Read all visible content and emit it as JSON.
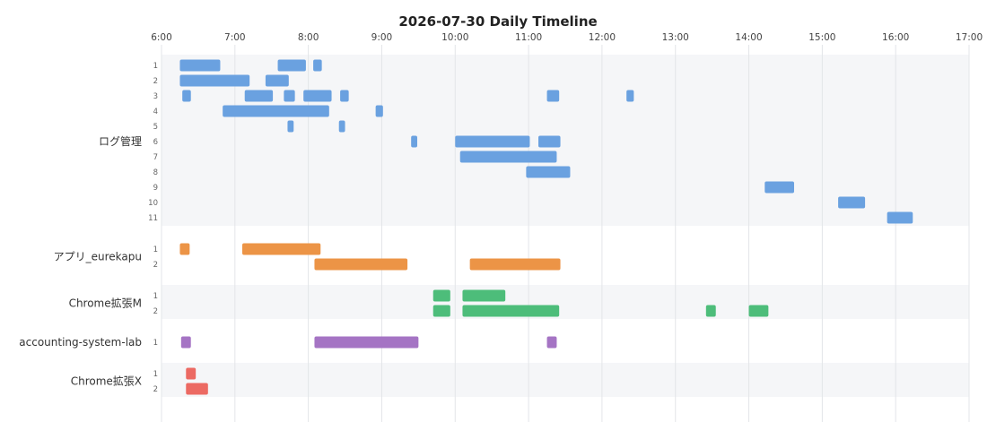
{
  "chart_data": {
    "type": "timeline",
    "title": "2026-07-30 Daily Timeline",
    "x_ticks": [
      "6:00",
      "7:00",
      "8:00",
      "9:00",
      "10:00",
      "11:00",
      "12:00",
      "13:00",
      "14:00",
      "15:00",
      "16:00",
      "17:00"
    ],
    "xlim": [
      "6:00",
      "17:00"
    ],
    "grid": true,
    "groups": [
      {
        "name": "ログ管理",
        "color": "#6aa1e0",
        "lanes": [
          {
            "label": "1",
            "bars": [
              [
                "6:15",
                "6:48"
              ],
              [
                "7:35",
                "7:58"
              ],
              [
                "8:04",
                "8:11"
              ]
            ]
          },
          {
            "label": "2",
            "bars": [
              [
                "6:15",
                "7:12"
              ],
              [
                "7:25",
                "7:44"
              ]
            ]
          },
          {
            "label": "3",
            "bars": [
              [
                "6:17",
                "6:24"
              ],
              [
                "7:08",
                "7:31"
              ],
              [
                "7:40",
                "7:49"
              ],
              [
                "7:56",
                "8:19"
              ],
              [
                "8:26",
                "8:33"
              ],
              [
                "11:15",
                "11:25"
              ],
              [
                "12:20",
                "12:26"
              ]
            ]
          },
          {
            "label": "4",
            "bars": [
              [
                "6:50",
                "8:17"
              ],
              [
                "8:55",
                "9:01"
              ]
            ]
          },
          {
            "label": "5",
            "bars": [
              [
                "7:43",
                "7:48"
              ],
              [
                "8:25",
                "8:30"
              ]
            ]
          },
          {
            "label": "6",
            "bars": [
              [
                "9:24",
                "9:29"
              ],
              [
                "10:00",
                "11:01"
              ],
              [
                "11:08",
                "11:26"
              ]
            ]
          },
          {
            "label": "7",
            "bars": [
              [
                "10:04",
                "11:23"
              ]
            ]
          },
          {
            "label": "8",
            "bars": [
              [
                "10:58",
                "11:34"
              ]
            ]
          },
          {
            "label": "9",
            "bars": [
              [
                "14:13",
                "14:37"
              ]
            ]
          },
          {
            "label": "10",
            "bars": [
              [
                "15:13",
                "15:35"
              ]
            ]
          },
          {
            "label": "11",
            "bars": [
              [
                "15:53",
                "16:14"
              ]
            ]
          }
        ]
      },
      {
        "name": "アプリ_eurekapu",
        "color": "#ec9446",
        "lanes": [
          {
            "label": "1",
            "bars": [
              [
                "6:15",
                "6:23"
              ],
              [
                "7:06",
                "8:10"
              ]
            ]
          },
          {
            "label": "2",
            "bars": [
              [
                "8:05",
                "9:21"
              ],
              [
                "10:12",
                "11:26"
              ]
            ]
          }
        ]
      },
      {
        "name": "Chrome拡張M",
        "color": "#4dbd7a",
        "lanes": [
          {
            "label": "1",
            "bars": [
              [
                "9:42",
                "9:56"
              ],
              [
                "10:06",
                "10:41"
              ]
            ]
          },
          {
            "label": "2",
            "bars": [
              [
                "9:42",
                "9:56"
              ],
              [
                "10:06",
                "11:25"
              ],
              [
                "13:25",
                "13:33"
              ],
              [
                "14:00",
                "14:16"
              ]
            ]
          }
        ]
      },
      {
        "name": "accounting-system-lab",
        "color": "#a574c4",
        "lanes": [
          {
            "label": "1",
            "bars": [
              [
                "6:16",
                "6:24"
              ],
              [
                "8:05",
                "9:30"
              ],
              [
                "11:15",
                "11:23"
              ]
            ]
          }
        ]
      },
      {
        "name": "Chrome拡張X",
        "color": "#ec6a63",
        "lanes": [
          {
            "label": "1",
            "bars": [
              [
                "6:20",
                "6:28"
              ]
            ]
          },
          {
            "label": "2",
            "bars": [
              [
                "6:20",
                "6:38"
              ]
            ]
          }
        ]
      }
    ]
  }
}
